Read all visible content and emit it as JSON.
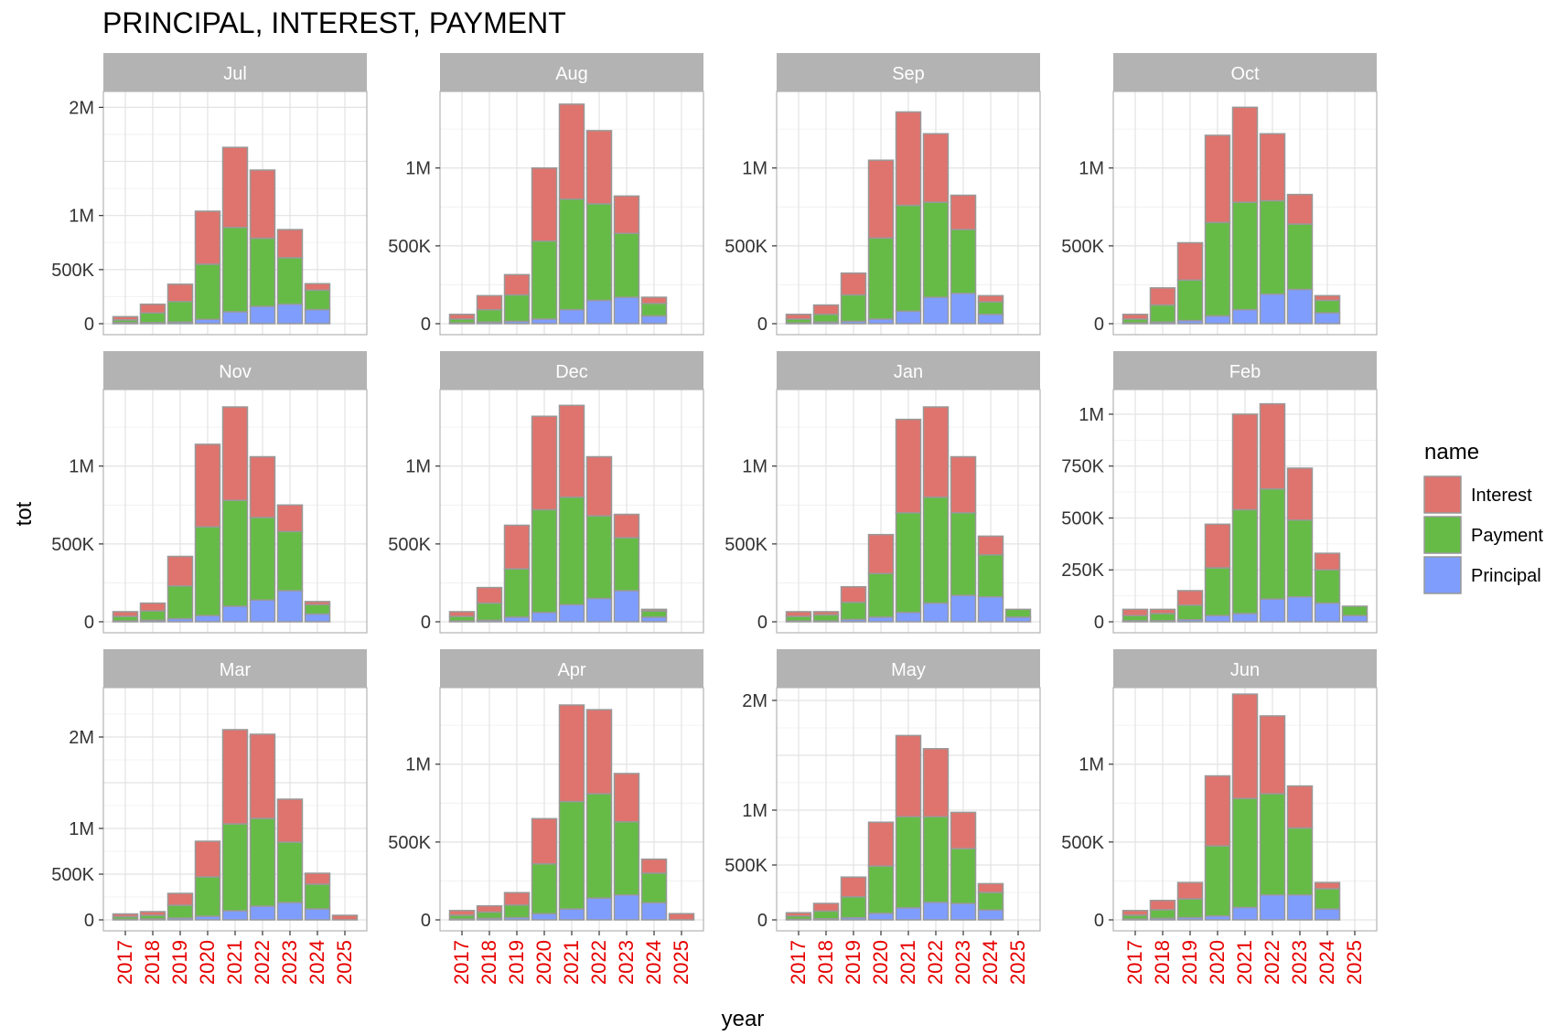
{
  "chart_data": {
    "type": "bar",
    "title": "PRINCIPAL, INTEREST, PAYMENT",
    "xlabel": "year",
    "ylabel": "tot",
    "categories": [
      "2017",
      "2018",
      "2019",
      "2020",
      "2021",
      "2022",
      "2023",
      "2024",
      "2025"
    ],
    "legend": {
      "title": "name",
      "position": "right",
      "items": [
        {
          "name": "Interest",
          "color": "#DE746D"
        },
        {
          "name": "Payment",
          "color": "#66BB47"
        },
        {
          "name": "Principal",
          "color": "#7F9DFD"
        }
      ]
    },
    "stack_order_bottom_to_top": [
      "Principal",
      "Payment",
      "Interest"
    ],
    "bar_outline_color": "#999999",
    "tick_label_color": "#E60000",
    "grid": true,
    "panels": [
      {
        "name": "Jul",
        "ylim": [
          0,
          2130000
        ],
        "yticks": [
          0,
          500000,
          1000000,
          1500000,
          2000000
        ],
        "ytick_labels": [
          "0",
          "500K",
          "1M",
          "",
          "2M"
        ],
        "values": {
          "Principal": [
            10000,
            10000,
            15000,
            40000,
            110000,
            160000,
            180000,
            130000,
            0
          ],
          "Payment": [
            25000,
            90000,
            190000,
            510000,
            780000,
            630000,
            430000,
            180000,
            0
          ],
          "Interest": [
            30000,
            80000,
            160000,
            490000,
            740000,
            630000,
            260000,
            60000,
            0
          ]
        }
      },
      {
        "name": "Aug",
        "ylim": [
          0,
          1480000
        ],
        "yticks": [
          0,
          500000,
          1000000
        ],
        "ytick_labels": [
          "0",
          "500K",
          "1M"
        ],
        "values": {
          "Principal": [
            5000,
            10000,
            15000,
            30000,
            90000,
            150000,
            170000,
            50000,
            0
          ],
          "Payment": [
            25000,
            80000,
            170000,
            500000,
            710000,
            620000,
            410000,
            80000,
            0
          ],
          "Interest": [
            30000,
            90000,
            130000,
            470000,
            610000,
            470000,
            240000,
            40000,
            0
          ]
        }
      },
      {
        "name": "Sep",
        "ylim": [
          0,
          1480000
        ],
        "yticks": [
          0,
          500000,
          1000000
        ],
        "ytick_labels": [
          "0",
          "500K",
          "1M"
        ],
        "values": {
          "Principal": [
            5000,
            10000,
            15000,
            30000,
            80000,
            170000,
            195000,
            60000,
            0
          ],
          "Payment": [
            25000,
            50000,
            170000,
            520000,
            680000,
            610000,
            410000,
            80000,
            0
          ],
          "Interest": [
            30000,
            60000,
            140000,
            500000,
            600000,
            440000,
            220000,
            40000,
            0
          ]
        }
      },
      {
        "name": "Oct",
        "ylim": [
          0,
          1480000
        ],
        "yticks": [
          0,
          500000,
          1000000
        ],
        "ytick_labels": [
          "0",
          "500K",
          "1M"
        ],
        "values": {
          "Principal": [
            5000,
            10000,
            20000,
            50000,
            90000,
            190000,
            220000,
            70000,
            0
          ],
          "Payment": [
            25000,
            110000,
            260000,
            600000,
            690000,
            600000,
            420000,
            80000,
            0
          ],
          "Interest": [
            30000,
            110000,
            240000,
            560000,
            610000,
            430000,
            190000,
            30000,
            0
          ]
        }
      },
      {
        "name": "Nov",
        "ylim": [
          0,
          1480000
        ],
        "yticks": [
          0,
          500000,
          1000000
        ],
        "ytick_labels": [
          "0",
          "500K",
          "1M"
        ],
        "values": {
          "Principal": [
            5000,
            10000,
            20000,
            40000,
            100000,
            140000,
            200000,
            50000,
            0
          ],
          "Payment": [
            30000,
            60000,
            210000,
            570000,
            680000,
            530000,
            380000,
            60000,
            0
          ],
          "Interest": [
            30000,
            50000,
            190000,
            530000,
            600000,
            390000,
            170000,
            20000,
            0
          ]
        }
      },
      {
        "name": "Dec",
        "ylim": [
          0,
          1480000
        ],
        "yticks": [
          0,
          500000,
          1000000
        ],
        "ytick_labels": [
          "0",
          "500K",
          "1M"
        ],
        "values": {
          "Principal": [
            5000,
            10000,
            30000,
            60000,
            110000,
            150000,
            200000,
            30000,
            0
          ],
          "Payment": [
            30000,
            110000,
            310000,
            660000,
            690000,
            530000,
            340000,
            40000,
            0
          ],
          "Interest": [
            30000,
            100000,
            280000,
            600000,
            590000,
            380000,
            150000,
            10000,
            0
          ]
        }
      },
      {
        "name": "Jan",
        "ylim": [
          0,
          1480000
        ],
        "yticks": [
          0,
          500000,
          1000000
        ],
        "ytick_labels": [
          "0",
          "500K",
          "1M"
        ],
        "values": {
          "Principal": [
            5000,
            5000,
            15000,
            30000,
            60000,
            120000,
            170000,
            160000,
            30000
          ],
          "Payment": [
            30000,
            40000,
            110000,
            280000,
            640000,
            680000,
            530000,
            270000,
            50000
          ],
          "Interest": [
            30000,
            20000,
            100000,
            250000,
            600000,
            580000,
            360000,
            120000,
            0
          ]
        }
      },
      {
        "name": "Feb",
        "ylim": [
          0,
          1110000
        ],
        "yticks": [
          0,
          250000,
          500000,
          750000,
          1000000
        ],
        "ytick_labels": [
          "0",
          "250K",
          "500K",
          "750K",
          "1M"
        ],
        "values": {
          "Principal": [
            5000,
            5000,
            10000,
            30000,
            40000,
            110000,
            120000,
            90000,
            30000
          ],
          "Payment": [
            25000,
            35000,
            70000,
            230000,
            500000,
            530000,
            370000,
            160000,
            45000
          ],
          "Interest": [
            30000,
            20000,
            70000,
            210000,
            460000,
            410000,
            250000,
            80000,
            0
          ]
        }
      },
      {
        "name": "Mar",
        "ylim": [
          0,
          2520000
        ],
        "yticks": [
          0,
          500000,
          1000000,
          1500000,
          2000000
        ],
        "ytick_labels": [
          "0",
          "500K",
          "1M",
          "",
          "2M"
        ],
        "values": {
          "Principal": [
            5000,
            10000,
            20000,
            40000,
            100000,
            150000,
            190000,
            120000,
            0
          ],
          "Payment": [
            30000,
            40000,
            140000,
            430000,
            950000,
            960000,
            660000,
            270000,
            0
          ],
          "Interest": [
            30000,
            40000,
            130000,
            390000,
            1030000,
            920000,
            470000,
            120000,
            50000
          ]
        }
      },
      {
        "name": "Apr",
        "ylim": [
          0,
          1480000
        ],
        "yticks": [
          0,
          500000,
          1000000
        ],
        "ytick_labels": [
          "0",
          "500K",
          "1M"
        ],
        "values": {
          "Principal": [
            5000,
            10000,
            15000,
            40000,
            70000,
            140000,
            160000,
            110000,
            0
          ],
          "Payment": [
            25000,
            40000,
            80000,
            320000,
            690000,
            670000,
            470000,
            190000,
            0
          ],
          "Interest": [
            30000,
            40000,
            80000,
            290000,
            620000,
            540000,
            310000,
            90000,
            40000
          ]
        }
      },
      {
        "name": "May",
        "ylim": [
          0,
          2100000
        ],
        "yticks": [
          0,
          500000,
          1000000,
          1500000,
          2000000
        ],
        "ytick_labels": [
          "0",
          "500K",
          "1M",
          "",
          "2M"
        ],
        "values": {
          "Principal": [
            5000,
            10000,
            20000,
            60000,
            110000,
            160000,
            150000,
            90000,
            0
          ],
          "Payment": [
            30000,
            70000,
            190000,
            430000,
            830000,
            780000,
            500000,
            160000,
            0
          ],
          "Interest": [
            30000,
            70000,
            180000,
            400000,
            740000,
            620000,
            330000,
            80000,
            0
          ]
        }
      },
      {
        "name": "Jun",
        "ylim": [
          0,
          1480000
        ],
        "yticks": [
          0,
          500000,
          1000000
        ],
        "ytick_labels": [
          "0",
          "500K",
          "1M"
        ],
        "values": {
          "Principal": [
            5000,
            10000,
            15000,
            25000,
            80000,
            160000,
            160000,
            70000,
            0
          ],
          "Payment": [
            25000,
            55000,
            120000,
            450000,
            700000,
            650000,
            430000,
            130000,
            0
          ],
          "Interest": [
            30000,
            60000,
            105000,
            450000,
            670000,
            500000,
            270000,
            40000,
            0
          ]
        }
      }
    ]
  }
}
